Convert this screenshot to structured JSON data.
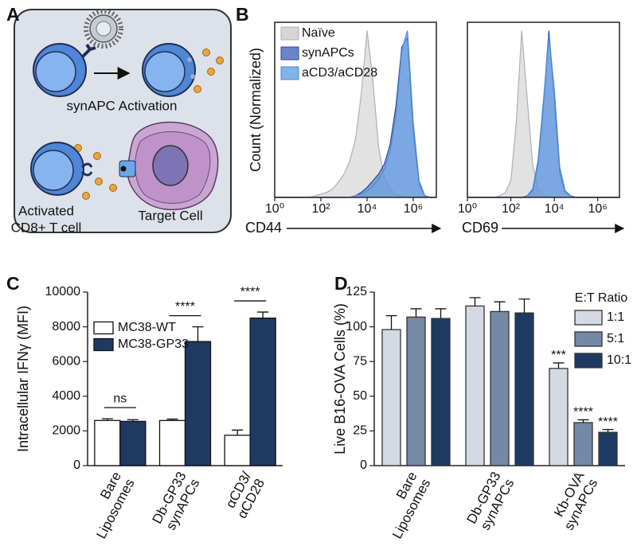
{
  "panel_labels": [
    "A",
    "B",
    "C",
    "D"
  ],
  "diagram": {
    "activation_label": "synAPC Activation",
    "t_cell_label": [
      "Activated",
      "CD8+ T cell"
    ],
    "target_label": "Target Cell"
  },
  "chart_data": [
    {
      "type": "density",
      "xscale": "log",
      "ylabel": "Count (Normalized)",
      "xlabel": "CD44",
      "legend": "upper left",
      "alpha": 0.6,
      "xlim": [
        1,
        10000000
      ],
      "ylim": [
        0,
        105
      ],
      "xticks": [
        {
          "value": 1,
          "label": "10⁰"
        },
        {
          "value": 100,
          "label": "10²"
        },
        {
          "value": 10000,
          "label": "10⁴"
        },
        {
          "value": 1000000,
          "label": "10⁶"
        }
      ],
      "x": [
        1,
        1.78,
        3.16,
        5.62,
        10,
        17.8,
        31.6,
        56.2,
        100,
        178,
        316,
        562,
        1000,
        1780,
        3160,
        5620,
        10000,
        17800,
        31600,
        56200,
        100000,
        178000,
        316000,
        562000,
        1000000,
        1780000,
        3160000,
        5620000,
        10000000
      ],
      "series": [
        {
          "name": "Naïve",
          "color": "#cfcfcf",
          "edgecolor": "#b0b0b0",
          "values": [
            0,
            0,
            0,
            0,
            0,
            0,
            0,
            1,
            2,
            3,
            5,
            9,
            14,
            22,
            35,
            62,
            100,
            70,
            30,
            12,
            5,
            2,
            1,
            0,
            0,
            0,
            0,
            0,
            0
          ]
        },
        {
          "name": "synAPCs",
          "color": "#4f6fc0",
          "edgecolor": "#2b4a9a",
          "values": [
            0,
            0,
            0,
            0,
            0,
            0,
            0,
            0,
            0,
            0,
            0,
            0,
            0,
            0,
            1,
            3,
            6,
            10,
            14,
            20,
            32,
            55,
            90,
            96,
            40,
            8,
            1,
            0,
            0
          ]
        },
        {
          "name": "aCD3/aCD28",
          "color": "#6aa7e8",
          "edgecolor": "#4a8ad6",
          "values": [
            0,
            0,
            0,
            0,
            0,
            0,
            0,
            0,
            0,
            0,
            0,
            0,
            0,
            0,
            1,
            2,
            4,
            7,
            11,
            17,
            28,
            50,
            88,
            100,
            45,
            10,
            1,
            0,
            0
          ]
        }
      ]
    },
    {
      "type": "density",
      "xscale": "log",
      "xlabel": "CD69",
      "alpha": 0.6,
      "xlim": [
        1,
        10000000
      ],
      "ylim": [
        0,
        105
      ],
      "xticks": [
        {
          "value": 1,
          "label": "10⁰"
        },
        {
          "value": 100,
          "label": "10²"
        },
        {
          "value": 10000,
          "label": "10⁴"
        },
        {
          "value": 1000000,
          "label": "10⁶"
        }
      ],
      "x": [
        1,
        1.78,
        3.16,
        5.62,
        10,
        17.8,
        31.6,
        56.2,
        100,
        178,
        316,
        562,
        1000,
        1780,
        3160,
        5620,
        10000,
        17800,
        31600,
        56200,
        100000,
        178000,
        316000,
        562000,
        1000000,
        1780000,
        3160000,
        5620000,
        10000000
      ],
      "series": [
        {
          "color": "#cfcfcf",
          "edgecolor": "#b0b0b0",
          "values": [
            0,
            0,
            0,
            0,
            0,
            0,
            1,
            3,
            10,
            45,
            100,
            60,
            20,
            5,
            1,
            0,
            0,
            0,
            0,
            0,
            0,
            0,
            0,
            0,
            0,
            0,
            0,
            0,
            0
          ]
        },
        {
          "color": "#4f6fc0",
          "edgecolor": "#2b4a9a",
          "values": [
            0,
            0,
            0,
            0,
            0,
            0,
            0,
            0,
            0,
            0,
            0,
            1,
            4,
            20,
            55,
            100,
            60,
            15,
            3,
            1,
            0,
            0,
            0,
            0,
            0,
            0,
            0,
            0,
            0
          ]
        },
        {
          "color": "#6aa7e8",
          "edgecolor": "#4a8ad6",
          "values": [
            0,
            0,
            0,
            0,
            0,
            0,
            0,
            0,
            0,
            0,
            0,
            1,
            5,
            22,
            58,
            97,
            65,
            18,
            4,
            1,
            0,
            0,
            0,
            0,
            0,
            0,
            0,
            0,
            0
          ]
        }
      ]
    },
    {
      "type": "bar",
      "ylabel": "Intracellular IFNγ (MFI)",
      "legend": "upper left",
      "categories": [
        [
          "Bare",
          "Liposomes"
        ],
        [
          "Db-GP33",
          "synAPCs"
        ],
        [
          "αCD3/",
          "αCD28"
        ]
      ],
      "ylim": [
        0,
        10000
      ],
      "yticks": [
        0,
        2000,
        4000,
        6000,
        8000,
        10000
      ],
      "significance": [
        "ns",
        "****",
        "****"
      ],
      "series": [
        {
          "name": "MC38-WT",
          "color": "#ffffff",
          "edgecolor": "#111111",
          "values": [
            2600,
            2600,
            1750
          ],
          "errors": [
            100,
            80,
            300
          ]
        },
        {
          "name": "MC38-GP33",
          "color": "#1e3a63",
          "edgecolor": "#111111",
          "values": [
            2550,
            7150,
            8500
          ],
          "errors": [
            100,
            850,
            350
          ]
        }
      ]
    },
    {
      "type": "bar",
      "ylabel": "Live B16-OVA Cells (%)",
      "legend": "upper right",
      "legend_title": "E:T Ratio",
      "categories": [
        [
          "Bare",
          "Liposomes"
        ],
        [
          "Db-GP33",
          "synAPCs"
        ],
        [
          "Kb-OVA",
          "synAPCs"
        ]
      ],
      "ylim": [
        0,
        125
      ],
      "yticks": [
        0,
        25,
        50,
        75,
        100,
        125
      ],
      "series": [
        {
          "name": "1:1",
          "color": "#d3dae3",
          "edgecolor": "#333333",
          "values": [
            98,
            115,
            70
          ],
          "errors": [
            10,
            6,
            4
          ],
          "significance": [
            null,
            null,
            "***"
          ]
        },
        {
          "name": "5:1",
          "color": "#7489a6",
          "edgecolor": "#333333",
          "values": [
            107,
            111,
            31
          ],
          "errors": [
            6,
            7,
            2
          ],
          "significance": [
            null,
            null,
            "****"
          ]
        },
        {
          "name": "10:1",
          "color": "#1e3a63",
          "edgecolor": "#333333",
          "values": [
            106,
            110,
            24
          ],
          "errors": [
            7,
            10,
            2
          ],
          "significance": [
            null,
            null,
            "****"
          ]
        }
      ]
    }
  ]
}
